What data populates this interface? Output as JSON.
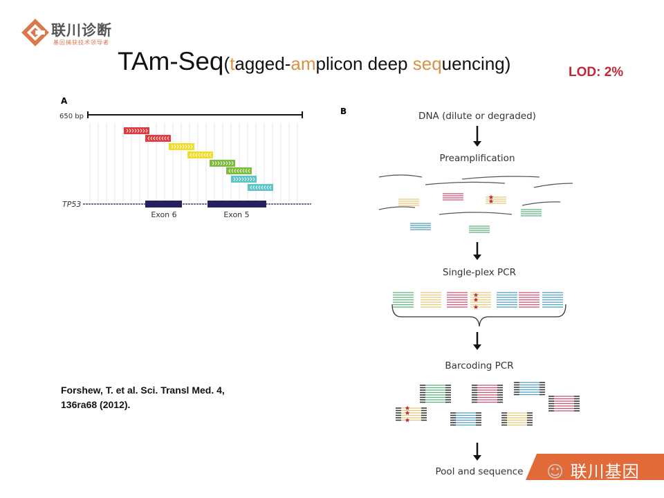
{
  "logo": {
    "name": "联川诊断",
    "tagline": "基因捕获技术领导者",
    "color": "#d9784a"
  },
  "title": {
    "main": "TAm-Seq",
    "segments": [
      {
        "text": "(",
        "highlight": false
      },
      {
        "text": "t",
        "highlight": true
      },
      {
        "text": "agged-",
        "highlight": false
      },
      {
        "text": "am",
        "highlight": true
      },
      {
        "text": "plicon deep ",
        "highlight": false
      },
      {
        "text": "seq",
        "highlight": true
      },
      {
        "text": "uencing)",
        "highlight": false
      }
    ],
    "highlight_color": "#d99148"
  },
  "lod": "LOD: 2%",
  "panel_a": {
    "label": "A",
    "scale_label": "650 bp",
    "gene": "TP53",
    "exons": [
      "Exon 6",
      "Exon 5"
    ],
    "amplicon_colors": [
      "#e03a3e",
      "#f2dc2a",
      "#7dbb3a",
      "#5ec4c8"
    ]
  },
  "panel_b": {
    "label": "B",
    "steps": [
      "DNA (dilute or degraded)",
      "Preamplification",
      "Single-plex PCR",
      "Barcoding PCR",
      "Pool and sequence"
    ]
  },
  "citation": {
    "line1": "Forshew, T. et al. Sci. Transl Med. 4,",
    "line2": "136ra68 (2012)."
  },
  "watermark": "联川基因"
}
